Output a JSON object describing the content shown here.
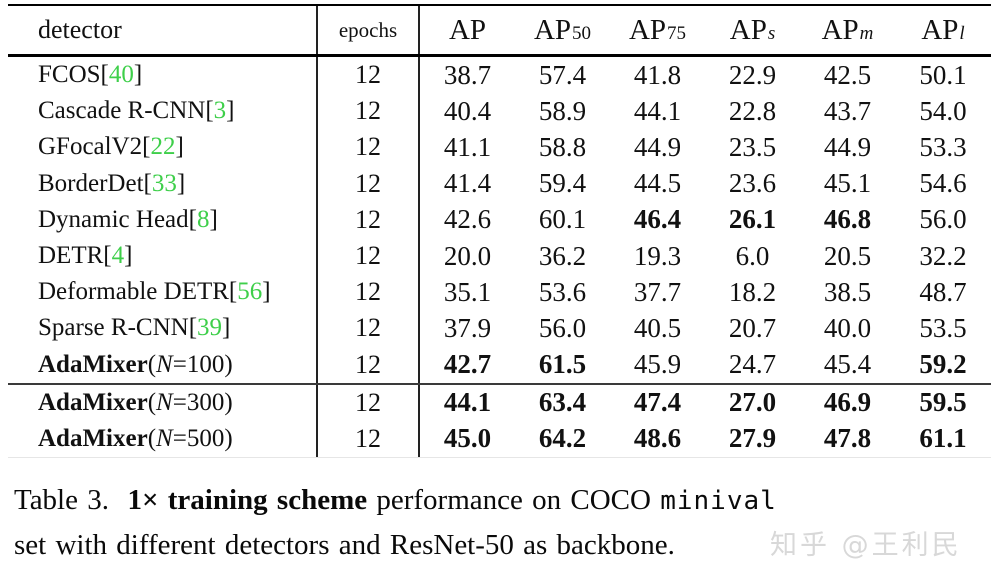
{
  "table": {
    "header": {
      "detector": "detector",
      "epochs": "epochs",
      "metrics": [
        {
          "t": "AP",
          "sub": "",
          "it": false
        },
        {
          "t": "AP",
          "sub": "50",
          "it": false
        },
        {
          "t": "AP",
          "sub": "75",
          "it": false
        },
        {
          "t": "AP",
          "sub": "s",
          "it": true
        },
        {
          "t": "AP",
          "sub": "m",
          "it": true
        },
        {
          "t": "AP",
          "sub": "l",
          "it": true
        }
      ]
    },
    "rows": [
      {
        "label": "FCOS",
        "ref": "40",
        "bold": false,
        "epochs": "12",
        "vals": [
          {
            "t": "38.7",
            "b": false
          },
          {
            "t": "57.4",
            "b": false
          },
          {
            "t": "41.8",
            "b": false
          },
          {
            "t": "22.9",
            "b": false
          },
          {
            "t": "42.5",
            "b": false
          },
          {
            "t": "50.1",
            "b": false
          }
        ]
      },
      {
        "label": "Cascade R-CNN",
        "ref": "3",
        "bold": false,
        "epochs": "12",
        "vals": [
          {
            "t": "40.4",
            "b": false
          },
          {
            "t": "58.9",
            "b": false
          },
          {
            "t": "44.1",
            "b": false
          },
          {
            "t": "22.8",
            "b": false
          },
          {
            "t": "43.7",
            "b": false
          },
          {
            "t": "54.0",
            "b": false
          }
        ]
      },
      {
        "label": "GFocalV2",
        "ref": "22",
        "bold": false,
        "epochs": "12",
        "vals": [
          {
            "t": "41.1",
            "b": false
          },
          {
            "t": "58.8",
            "b": false
          },
          {
            "t": "44.9",
            "b": false
          },
          {
            "t": "23.5",
            "b": false
          },
          {
            "t": "44.9",
            "b": false
          },
          {
            "t": "53.3",
            "b": false
          }
        ]
      },
      {
        "label": "BorderDet",
        "ref": "33",
        "bold": false,
        "epochs": "12",
        "vals": [
          {
            "t": "41.4",
            "b": false
          },
          {
            "t": "59.4",
            "b": false
          },
          {
            "t": "44.5",
            "b": false
          },
          {
            "t": "23.6",
            "b": false
          },
          {
            "t": "45.1",
            "b": false
          },
          {
            "t": "54.6",
            "b": false
          }
        ]
      },
      {
        "label": "Dynamic Head",
        "ref": "8",
        "bold": false,
        "epochs": "12",
        "vals": [
          {
            "t": "42.6",
            "b": false
          },
          {
            "t": "60.1",
            "b": false
          },
          {
            "t": "46.4",
            "b": true
          },
          {
            "t": "26.1",
            "b": true
          },
          {
            "t": "46.8",
            "b": true
          },
          {
            "t": "56.0",
            "b": false
          }
        ]
      },
      {
        "label": "DETR",
        "ref": "4",
        "bold": false,
        "epochs": "12",
        "vals": [
          {
            "t": "20.0",
            "b": false
          },
          {
            "t": "36.2",
            "b": false
          },
          {
            "t": "19.3",
            "b": false
          },
          {
            "t": "6.0",
            "b": false
          },
          {
            "t": "20.5",
            "b": false
          },
          {
            "t": "32.2",
            "b": false
          }
        ]
      },
      {
        "label": "Deformable DETR",
        "ref": "56",
        "bold": false,
        "epochs": "12",
        "vals": [
          {
            "t": "35.1",
            "b": false
          },
          {
            "t": "53.6",
            "b": false
          },
          {
            "t": "37.7",
            "b": false
          },
          {
            "t": "18.2",
            "b": false
          },
          {
            "t": "38.5",
            "b": false
          },
          {
            "t": "48.7",
            "b": false
          }
        ]
      },
      {
        "label": "Sparse R-CNN",
        "ref": "39",
        "bold": false,
        "epochs": "12",
        "vals": [
          {
            "t": "37.9",
            "b": false
          },
          {
            "t": "56.0",
            "b": false
          },
          {
            "t": "40.5",
            "b": false
          },
          {
            "t": "20.7",
            "b": false
          },
          {
            "t": "40.0",
            "b": false
          },
          {
            "t": "53.5",
            "b": false
          }
        ]
      },
      {
        "label": "AdaMixer",
        "n": "100",
        "bold": true,
        "epochs": "12",
        "vals": [
          {
            "t": "42.7",
            "b": true
          },
          {
            "t": "61.5",
            "b": true
          },
          {
            "t": "45.9",
            "b": false
          },
          {
            "t": "24.7",
            "b": false
          },
          {
            "t": "45.4",
            "b": false
          },
          {
            "t": "59.2",
            "b": true
          }
        ]
      },
      {
        "label": "AdaMixer",
        "n": "300",
        "bold": true,
        "sep": true,
        "epochs": "12",
        "vals": [
          {
            "t": "44.1",
            "b": true
          },
          {
            "t": "63.4",
            "b": true
          },
          {
            "t": "47.4",
            "b": true
          },
          {
            "t": "27.0",
            "b": true
          },
          {
            "t": "46.9",
            "b": true
          },
          {
            "t": "59.5",
            "b": true
          }
        ]
      },
      {
        "label": "AdaMixer",
        "n": "500",
        "bold": true,
        "epochs": "12",
        "vals": [
          {
            "t": "45.0",
            "b": true
          },
          {
            "t": "64.2",
            "b": true
          },
          {
            "t": "48.6",
            "b": true
          },
          {
            "t": "27.9",
            "b": true
          },
          {
            "t": "47.8",
            "b": true
          },
          {
            "t": "61.1",
            "b": true
          }
        ]
      }
    ]
  },
  "caption": {
    "line1_segments": [
      {
        "t": "Table 3.  ",
        "style": "regular"
      },
      {
        "t": "1× training scheme",
        "style": "bold"
      },
      {
        "t": " performance on COCO ",
        "style": "regular"
      },
      {
        "t": "minival",
        "style": "mono"
      }
    ],
    "line2": "set with different detectors and ResNet-50 as backbone."
  },
  "watermark": {
    "text": "知乎 @王利民"
  },
  "colors": {
    "citation_green": "#3ecf4a",
    "watermark_gray": "#d8d8d8",
    "rule_black": "#000000"
  }
}
